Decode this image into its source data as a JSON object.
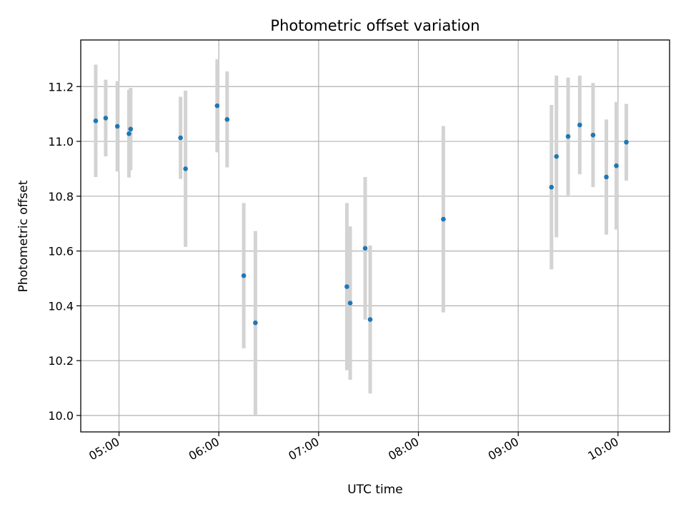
{
  "chart_data": {
    "type": "scatter",
    "title": "Photometric offset variation",
    "xlabel": "UTC time",
    "ylabel": "Photometric offset",
    "x_ticks": [
      "05:00",
      "06:00",
      "07:00",
      "08:00",
      "09:00",
      "10:00"
    ],
    "y_ticks": [
      "10.0",
      "10.2",
      "10.4",
      "10.6",
      "10.8",
      "11.0",
      "11.2"
    ],
    "xlim": [
      "04:37",
      "10:31"
    ],
    "ylim": [
      9.94,
      11.37
    ],
    "grid": true,
    "colors": {
      "points": "#1f77b4",
      "errorbars": "#d3d3d3",
      "grid": "#b0b0b0"
    },
    "points": [
      {
        "x": "04:46",
        "y": 11.075,
        "err": 0.205
      },
      {
        "x": "04:52",
        "y": 11.085,
        "err": 0.14
      },
      {
        "x": "04:59",
        "y": 11.055,
        "err": 0.165
      },
      {
        "x": "05:06",
        "y": 11.028,
        "err": 0.16
      },
      {
        "x": "05:07",
        "y": 11.045,
        "err": 0.15
      },
      {
        "x": "05:37",
        "y": 11.013,
        "err": 0.15
      },
      {
        "x": "05:40",
        "y": 10.9,
        "err": 0.285
      },
      {
        "x": "05:59",
        "y": 11.13,
        "err": 0.17
      },
      {
        "x": "06:05",
        "y": 11.08,
        "err": 0.175
      },
      {
        "x": "06:15",
        "y": 10.51,
        "err": 0.265
      },
      {
        "x": "06:22",
        "y": 10.338,
        "err": 0.335
      },
      {
        "x": "07:17",
        "y": 10.47,
        "err": 0.305
      },
      {
        "x": "07:19",
        "y": 10.41,
        "err": 0.28
      },
      {
        "x": "07:28",
        "y": 10.61,
        "err": 0.26
      },
      {
        "x": "07:31",
        "y": 10.35,
        "err": 0.27
      },
      {
        "x": "08:15",
        "y": 10.716,
        "err": 0.34
      },
      {
        "x": "09:20",
        "y": 10.833,
        "err": 0.3
      },
      {
        "x": "09:23",
        "y": 10.945,
        "err": 0.295
      },
      {
        "x": "09:30",
        "y": 11.018,
        "err": 0.215
      },
      {
        "x": "09:37",
        "y": 11.06,
        "err": 0.18
      },
      {
        "x": "09:45",
        "y": 11.023,
        "err": 0.19
      },
      {
        "x": "09:53",
        "y": 10.87,
        "err": 0.21
      },
      {
        "x": "09:59",
        "y": 10.911,
        "err": 0.233
      },
      {
        "x": "10:05",
        "y": 10.997,
        "err": 0.14
      }
    ]
  }
}
